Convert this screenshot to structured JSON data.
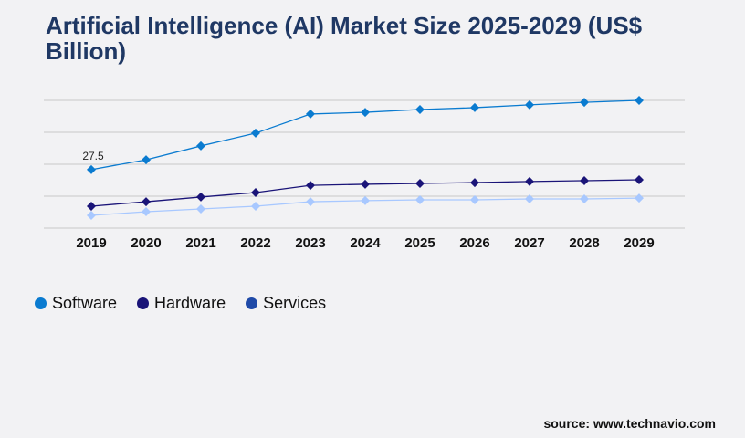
{
  "title": "Artificial Intelligence (AI) Market Size 2025-2029 (US$ Billion)",
  "source": "source: www.technavio.com",
  "chart_data": {
    "type": "line",
    "categories": [
      "2019",
      "2020",
      "2021",
      "2022",
      "2023",
      "2024",
      "2025",
      "2026",
      "2027",
      "2028",
      "2029"
    ],
    "ylim": [
      0,
      60
    ],
    "grid": true,
    "legend": "bottom-left",
    "series": [
      {
        "name": "Software",
        "color": "#0a7bd0",
        "legend_color": "#0a7bd0",
        "values": [
          27.5,
          32.1,
          38.6,
          44.6,
          53.6,
          54.4,
          55.7,
          56.6,
          57.9,
          59.1,
          60.0
        ]
      },
      {
        "name": "Hardware",
        "color": "#1a1478",
        "legend_color": "#1a1478",
        "values": [
          10.3,
          12.4,
          14.6,
          16.7,
          20.1,
          20.6,
          21.0,
          21.4,
          21.9,
          22.3,
          22.7
        ]
      },
      {
        "name": "Services",
        "color": "#a8c8ff",
        "legend_color": "#1f4aa8",
        "values": [
          6.0,
          7.7,
          9.0,
          10.3,
          12.4,
          12.9,
          13.3,
          13.3,
          13.7,
          13.7,
          14.1
        ]
      }
    ],
    "data_labels": [
      {
        "series": "Software",
        "category": "2019",
        "text": "27.5"
      }
    ]
  }
}
